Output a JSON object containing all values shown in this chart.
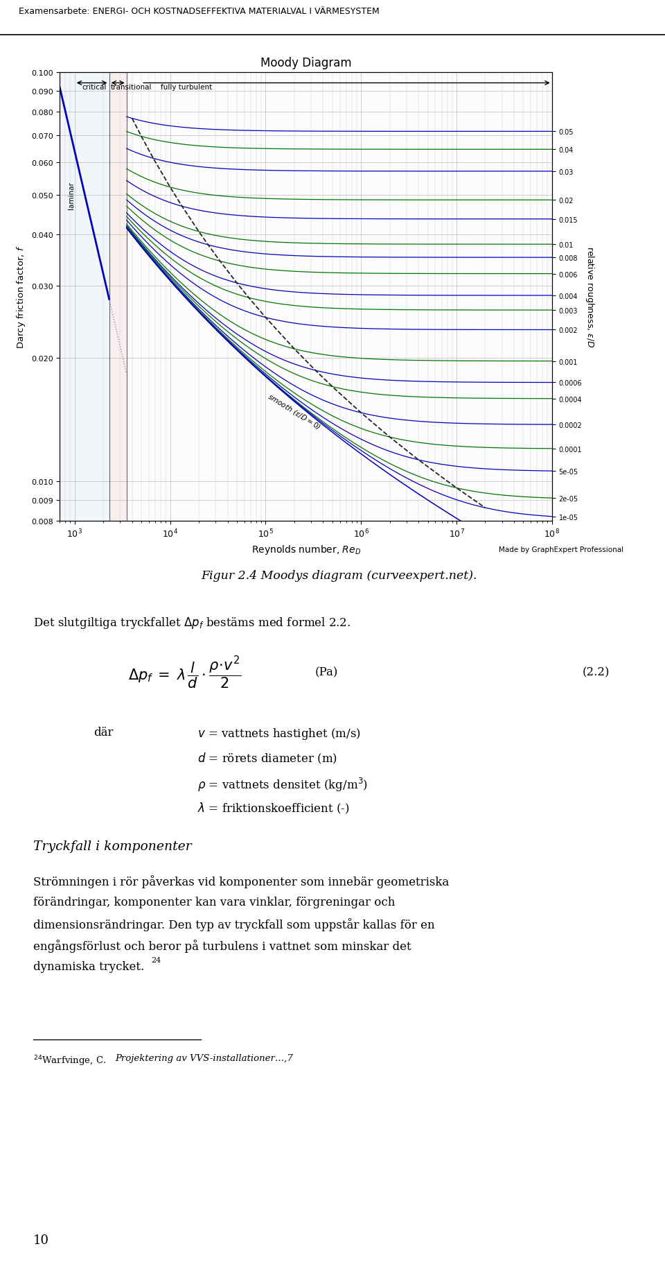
{
  "header_text": "Examensarbete: ENERGI- OCH KOSTNADSEFFEKTIVA MATERIALVAL I VÄRMESYSTEM",
  "page_bg": "#ffffff",
  "moody_title": "Moody Diagram",
  "moody_xlabel": "Reynolds number, $Re_D$",
  "moody_ylabel": "Darcy friction factor, $f$",
  "moody_ylabel2": "relative roughness, $\\epsilon/D$",
  "fig_caption": "Figur 2.4 Moodys diagram (curveexpert.net).",
  "graphexpert_credit": "Made by GraphExpert Professional",
  "text_block_1": "Det slutgiltiga tryckfallet $\\Delta p_f$ bestäms med formel 2.2.",
  "formula_label": "(2.2)",
  "formula_unit": "(Pa)",
  "where_label": "där",
  "var1": "$v$ = vattnets hastighet (m/s)",
  "var2": "$d$ = rörets diameter (m)",
  "var3": "$\\rho$ = vattnets densitet (kg/m$^3$)",
  "var4": "$\\lambda$ = friktionskoefficient (-)",
  "section_heading": "Tryckfall i komponenter",
  "para_line1": "Strömningen i rör påverkas vid komponenter som innebär geometriska",
  "para_line2": "förändringar, komponenter kan vara vinklar, förgreningar och",
  "para_line3": "dimensionsrändringar. Den typ av tryckfall som uppstår kallas för en",
  "para_line4": "engångsförlust och beror på turbulens i vattnet som minskar det",
  "para_line5": "dynamiska trycket.",
  "footnote_text": "$^{24}$Warfvinge, C. ",
  "footnote_italic": "Projektering av VVS-installationer",
  "footnote_end": "…,7",
  "page_number": "10",
  "laminar_label": "laminar",
  "critical_label": "critical",
  "transitional_label": "transitional",
  "fully_turbulent_label": "fully turbulent",
  "smooth_label": "smooth ($\\epsilon/D=0$)",
  "roughness_values": [
    0.05,
    0.04,
    0.03,
    0.02,
    0.015,
    0.01,
    0.008,
    0.006,
    0.004,
    0.003,
    0.002,
    0.001,
    0.0006,
    0.0004,
    0.0002,
    0.0001,
    5e-05,
    2e-05,
    1e-05
  ],
  "blue_color": "#0000bb",
  "green_color": "#007700",
  "critical_bg": "#c8d4e8",
  "transitional_bg": "#e8c8c8",
  "dashed_line_color": "#222222",
  "roughness_labels": [
    "0.05",
    "0.04",
    "0.03",
    "0.02",
    "0.015",
    "0.01",
    "0.008",
    "0.006",
    "0.004",
    "0.003",
    "0.002",
    "0.001",
    "0.0006",
    "0.0004",
    "0.0002",
    "0.0001",
    "5e-05",
    "2e-05",
    "1e-05"
  ]
}
